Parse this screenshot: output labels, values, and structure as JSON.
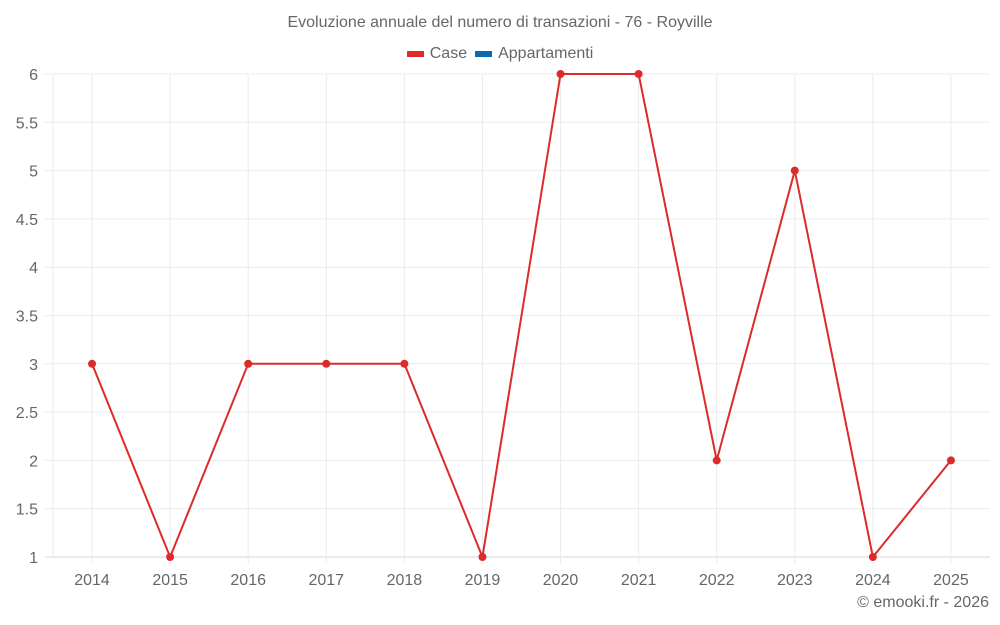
{
  "chart": {
    "title": "Evoluzione annuale del numero di transazioni - 76 - Royville",
    "credit": "© emooki.fr - 2026",
    "legend": [
      {
        "label": "Case",
        "color": "#dd2a2a"
      },
      {
        "label": "Appartamenti",
        "color": "#0a6ab0"
      }
    ]
  },
  "chart_data": {
    "type": "line",
    "title": "Evoluzione annuale del numero di transazioni - 76 - Royville",
    "xlabel": "",
    "ylabel": "",
    "categories": [
      "2014",
      "2015",
      "2016",
      "2017",
      "2018",
      "2019",
      "2020",
      "2021",
      "2022",
      "2023",
      "2024",
      "2025"
    ],
    "series": [
      {
        "name": "Case",
        "color": "#dd2a2a",
        "values": [
          3,
          1,
          3,
          3,
          3,
          1,
          6,
          6,
          2,
          5,
          1,
          2
        ]
      },
      {
        "name": "Appartamenti",
        "color": "#0a6ab0",
        "values": []
      }
    ],
    "ylim": [
      1,
      6
    ],
    "yticks": [
      "1",
      "1.5",
      "2",
      "2.5",
      "3",
      "3.5",
      "4",
      "4.5",
      "5",
      "5.5",
      "6"
    ],
    "grid": true,
    "legend_position": "top"
  }
}
